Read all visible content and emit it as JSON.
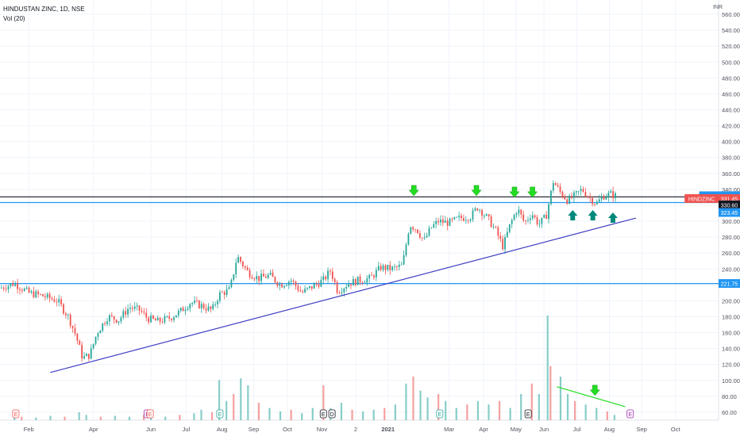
{
  "chart_data": {
    "type": "candlestick",
    "symbol_line": "HINDUSTAN ZINC, 1D, NSE",
    "volume_label": "Vol (20)",
    "currency": "INR",
    "price_ticks": [
      "60.00",
      "80.00",
      "100.00",
      "120.00",
      "140.00",
      "160.00",
      "180.00",
      "200.00",
      "220.00",
      "240.00",
      "260.00",
      "280.00",
      "300.00",
      "320.00",
      "340.00",
      "360.00",
      "380.00",
      "400.00",
      "420.00",
      "440.00",
      "460.00",
      "480.00",
      "500.00",
      "520.00",
      "540.00",
      "560.00"
    ],
    "time_ticks": [
      "Feb",
      "Apr",
      "Jun",
      "Jul",
      "Aug",
      "Sep",
      "Oct",
      "Nov",
      "2",
      "2021",
      "Mar",
      "Apr",
      "May",
      "Jun",
      "Jul",
      "Aug",
      "Sep",
      "Oct"
    ],
    "ylim": [
      50,
      570
    ],
    "price_tags": [
      {
        "text": "Post",
        "value": "332.00",
        "price": 332.0,
        "color": "#2196f3"
      },
      {
        "text": "HINDZINC",
        "value": "331.45",
        "price": 328.5,
        "color": "#ef5350"
      },
      {
        "text": "",
        "value": "330.60",
        "price": 320.5,
        "color": "#131722"
      },
      {
        "text": "",
        "value": "323.45",
        "price": 311.0,
        "color": "#2196f3"
      },
      {
        "text": "",
        "value": "221.75",
        "price": 221.75,
        "color": "#2196f3"
      }
    ],
    "horizontal_levels": [
      {
        "price": 330.6,
        "color": "#131722"
      },
      {
        "price": 323.45,
        "color": "#2196f3"
      },
      {
        "price": 221.75,
        "color": "#2196f3"
      }
    ],
    "trendline": {
      "start": {
        "t": 0.07,
        "price": 110
      },
      "end": {
        "t": 0.885,
        "price": 304
      },
      "color": "#3f3fc4"
    },
    "volume_trendline": {
      "start": {
        "t": 0.775,
        "price": 92
      },
      "end": {
        "t": 0.87,
        "price": 67
      },
      "color": "#22dd22"
    },
    "arrows_down": [
      {
        "t": 0.576,
        "price": 337
      },
      {
        "t": 0.663,
        "price": 337
      },
      {
        "t": 0.716,
        "price": 335
      },
      {
        "t": 0.741,
        "price": 335
      },
      {
        "t": 0.828,
        "price": 86
      }
    ],
    "arrows_up": [
      {
        "t": 0.797,
        "price": 309
      },
      {
        "t": 0.825,
        "price": 309
      },
      {
        "t": 0.853,
        "price": 306
      }
    ],
    "event_markers": [
      {
        "t": 0.022,
        "label": "E",
        "color": "#ef5350"
      },
      {
        "t": 0.205,
        "label": "E",
        "color": "#9c27b0"
      },
      {
        "t": 0.209,
        "label": "E",
        "color": "#ef5350"
      },
      {
        "t": 0.306,
        "label": "E",
        "color": "#26a69a"
      },
      {
        "t": 0.45,
        "label": "E",
        "color": "#131722"
      },
      {
        "t": 0.462,
        "label": "D",
        "color": "#131722"
      },
      {
        "t": 0.612,
        "label": "E",
        "color": "#26a69a"
      },
      {
        "t": 0.735,
        "label": "E",
        "color": "#131722"
      },
      {
        "t": 0.877,
        "label": "E",
        "color": "#9c27b0"
      }
    ],
    "price_path": [
      [
        0.0,
        216
      ],
      [
        0.02,
        222
      ],
      [
        0.04,
        210
      ],
      [
        0.06,
        206
      ],
      [
        0.08,
        200
      ],
      [
        0.095,
        180
      ],
      [
        0.105,
        158
      ],
      [
        0.115,
        128
      ],
      [
        0.125,
        132
      ],
      [
        0.135,
        160
      ],
      [
        0.15,
        180
      ],
      [
        0.165,
        176
      ],
      [
        0.18,
        192
      ],
      [
        0.195,
        188
      ],
      [
        0.205,
        178
      ],
      [
        0.22,
        174
      ],
      [
        0.235,
        178
      ],
      [
        0.25,
        186
      ],
      [
        0.265,
        198
      ],
      [
        0.28,
        194
      ],
      [
        0.295,
        188
      ],
      [
        0.305,
        208
      ],
      [
        0.32,
        214
      ],
      [
        0.33,
        256
      ],
      [
        0.345,
        236
      ],
      [
        0.36,
        228
      ],
      [
        0.375,
        232
      ],
      [
        0.39,
        220
      ],
      [
        0.405,
        226
      ],
      [
        0.42,
        210
      ],
      [
        0.435,
        218
      ],
      [
        0.45,
        226
      ],
      [
        0.46,
        238
      ],
      [
        0.47,
        212
      ],
      [
        0.485,
        222
      ],
      [
        0.5,
        226
      ],
      [
        0.515,
        228
      ],
      [
        0.53,
        242
      ],
      [
        0.545,
        240
      ],
      [
        0.56,
        244
      ],
      [
        0.57,
        296
      ],
      [
        0.58,
        290
      ],
      [
        0.59,
        275
      ],
      [
        0.6,
        292
      ],
      [
        0.61,
        300
      ],
      [
        0.625,
        298
      ],
      [
        0.64,
        304
      ],
      [
        0.655,
        306
      ],
      [
        0.665,
        318
      ],
      [
        0.68,
        302
      ],
      [
        0.69,
        288
      ],
      [
        0.7,
        268
      ],
      [
        0.71,
        296
      ],
      [
        0.72,
        316
      ],
      [
        0.73,
        298
      ],
      [
        0.74,
        310
      ],
      [
        0.75,
        296
      ],
      [
        0.76,
        306
      ],
      [
        0.77,
        350
      ],
      [
        0.78,
        336
      ],
      [
        0.79,
        326
      ],
      [
        0.8,
        332
      ],
      [
        0.81,
        340
      ],
      [
        0.82,
        330
      ],
      [
        0.83,
        322
      ],
      [
        0.84,
        332
      ],
      [
        0.85,
        334
      ],
      [
        0.858,
        331.45
      ]
    ],
    "volume_bars": [
      [
        0.02,
        3
      ],
      [
        0.03,
        4
      ],
      [
        0.05,
        3
      ],
      [
        0.07,
        5
      ],
      [
        0.09,
        4
      ],
      [
        0.11,
        9
      ],
      [
        0.12,
        6
      ],
      [
        0.14,
        4
      ],
      [
        0.16,
        5
      ],
      [
        0.18,
        4
      ],
      [
        0.2,
        6
      ],
      [
        0.21,
        5
      ],
      [
        0.23,
        4
      ],
      [
        0.25,
        6
      ],
      [
        0.27,
        8
      ],
      [
        0.28,
        12
      ],
      [
        0.295,
        9
      ],
      [
        0.305,
        46
      ],
      [
        0.315,
        22
      ],
      [
        0.325,
        30
      ],
      [
        0.335,
        48
      ],
      [
        0.345,
        40
      ],
      [
        0.36,
        20
      ],
      [
        0.375,
        14
      ],
      [
        0.39,
        10
      ],
      [
        0.405,
        12
      ],
      [
        0.42,
        8
      ],
      [
        0.435,
        14
      ],
      [
        0.45,
        40
      ],
      [
        0.46,
        14
      ],
      [
        0.475,
        20
      ],
      [
        0.49,
        12
      ],
      [
        0.505,
        10
      ],
      [
        0.52,
        12
      ],
      [
        0.535,
        14
      ],
      [
        0.55,
        18
      ],
      [
        0.565,
        42
      ],
      [
        0.575,
        50
      ],
      [
        0.585,
        34
      ],
      [
        0.595,
        26
      ],
      [
        0.61,
        30
      ],
      [
        0.62,
        22
      ],
      [
        0.635,
        14
      ],
      [
        0.65,
        18
      ],
      [
        0.665,
        22
      ],
      [
        0.68,
        18
      ],
      [
        0.695,
        22
      ],
      [
        0.71,
        14
      ],
      [
        0.725,
        30
      ],
      [
        0.74,
        42
      ],
      [
        0.75,
        30
      ],
      [
        0.762,
        120
      ],
      [
        0.766,
        62
      ],
      [
        0.78,
        50
      ],
      [
        0.79,
        30
      ],
      [
        0.8,
        22
      ],
      [
        0.815,
        18
      ],
      [
        0.83,
        14
      ],
      [
        0.845,
        10
      ],
      [
        0.855,
        6
      ]
    ],
    "grid": true
  }
}
